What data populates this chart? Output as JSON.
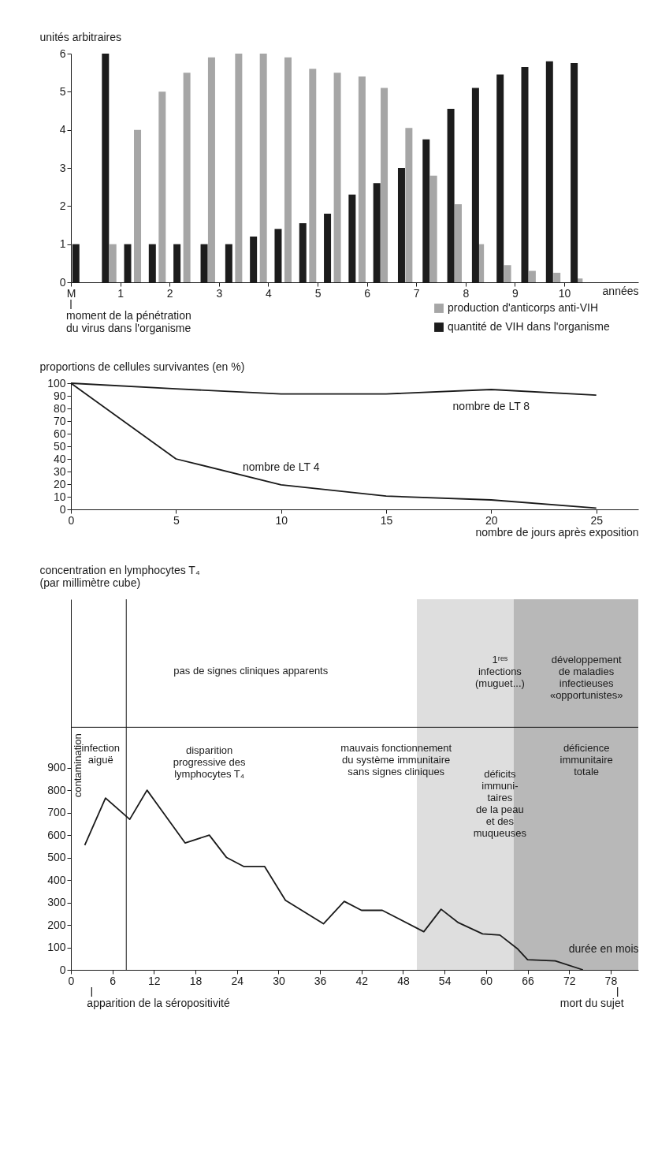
{
  "chart_data": [
    {
      "type": "bar",
      "ylabel": "unités arbitraires",
      "xlabel": "années",
      "xlim": [
        0,
        11.5
      ],
      "ylim": [
        0,
        6
      ],
      "xticks": [
        {
          "value": 0,
          "label": "M"
        },
        1,
        2,
        3,
        4,
        5,
        6,
        7,
        8,
        9,
        10
      ],
      "yticks": [
        0,
        1,
        2,
        3,
        4,
        5,
        6
      ],
      "legend": "bottom right",
      "grid": false,
      "series": [
        {
          "name": "production d'anticorps anti-VIH",
          "color": "#a6a6a6",
          "x": [
            0.85,
            1.35,
            1.85,
            2.35,
            2.85,
            3.4,
            3.9,
            4.4,
            4.9,
            5.4,
            5.9,
            6.35,
            6.85,
            7.35,
            7.85,
            8.3,
            8.85,
            9.35,
            9.85,
            10.3
          ],
          "values": [
            1.0,
            4.0,
            5.0,
            5.5,
            5.9,
            6.0,
            6.0,
            5.9,
            5.6,
            5.5,
            5.4,
            5.1,
            4.05,
            2.8,
            2.05,
            1.0,
            0.45,
            0.3,
            0.25,
            0.1
          ]
        },
        {
          "name": "quantité de VIH dans l'organisme",
          "color": "#1c1c1c",
          "x": [
            0.1,
            0.7,
            1.15,
            1.65,
            2.15,
            2.7,
            3.2,
            3.7,
            4.2,
            4.7,
            5.2,
            5.7,
            6.2,
            6.7,
            7.2,
            7.7,
            8.2,
            8.7,
            9.2,
            9.7,
            10.2
          ],
          "values": [
            1.0,
            6.0,
            1.0,
            1.0,
            1.0,
            1.0,
            1.0,
            1.2,
            1.4,
            1.55,
            1.8,
            2.3,
            2.6,
            3.0,
            3.75,
            4.55,
            5.1,
            5.45,
            5.65,
            5.8,
            5.75
          ]
        }
      ],
      "annotations": [
        "moment de la pénétration\ndu virus dans l'organisme"
      ]
    },
    {
      "type": "line",
      "ylabel": "proportions de cellules survivantes (en %)",
      "xlabel": "nombre de jours après exposition",
      "x": [
        0,
        5,
        10,
        15,
        20,
        25
      ],
      "xlim": [
        0,
        27
      ],
      "ylim": [
        0,
        100
      ],
      "xticks": [
        0,
        5,
        10,
        15,
        20,
        25
      ],
      "yticks": [
        0,
        10,
        20,
        30,
        40,
        50,
        60,
        70,
        80,
        90,
        100
      ],
      "grid": false,
      "legend": false,
      "series": [
        {
          "name": "nombre de LT 8",
          "color": "#1a1a1a",
          "values": [
            100,
            95.5,
            91.5,
            91.5,
            95,
            90.5
          ]
        },
        {
          "name": "nombre de LT 4",
          "color": "#1a1a1a",
          "values": [
            100,
            40,
            19.5,
            10.5,
            7.5,
            1
          ]
        }
      ]
    },
    {
      "type": "line",
      "ylabel": "concentration en lymphocytes T₄\n(par millimètre cube)",
      "xlabel": "durée en mois",
      "xlim": [
        0,
        82
      ],
      "ylim": [
        0,
        1650
      ],
      "xticks": [
        0,
        6,
        12,
        18,
        24,
        30,
        36,
        42,
        48,
        54,
        60,
        66,
        72,
        78
      ],
      "yticks": [
        0,
        100,
        200,
        300,
        400,
        500,
        600,
        700,
        800,
        900
      ],
      "grid": false,
      "legend": false,
      "x": [
        2,
        5,
        8.5,
        11,
        16.5,
        20,
        22.5,
        25,
        28,
        31,
        36.5,
        39.5,
        42,
        45,
        51,
        53.5,
        56,
        59.5,
        62,
        64.5,
        66,
        70,
        74
      ],
      "series": [
        {
          "color": "#1a1a1a",
          "values": [
            555,
            765,
            670,
            800,
            565,
            600,
            500,
            460,
            460,
            310,
            205,
            305,
            265,
            265,
            170,
            270,
            210,
            160,
            155,
            95,
            45,
            40,
            0
          ]
        }
      ],
      "bands": [
        {
          "axis": "x",
          "from": 50,
          "to": 64,
          "color": "#dedede"
        },
        {
          "axis": "x",
          "from": 64,
          "to": 82,
          "color": "#b8b8b8"
        }
      ],
      "ref_lines": [
        {
          "axis": "x",
          "value": 8
        },
        {
          "axis": "y",
          "value": 1080
        }
      ],
      "annotations": [
        "pas de signes cliniques apparents",
        "1ʳᵉˢ\ninfections\n(muguet...)",
        "développement\nde maladies\ninfectieuses\n«opportunistes»",
        "contamination",
        "infection\naiguë",
        "disparition\nprogressive des\nlymphocytes T₄",
        "mauvais fonctionnement\ndu système immunitaire\nsans signes cliniques",
        "déficits\nimmuni-\ntaires\nde la peau\net des\nmuqueuses",
        "déficience\nimmunitaire\ntotale",
        "apparition de la séropositivité",
        "mort du sujet"
      ]
    }
  ]
}
